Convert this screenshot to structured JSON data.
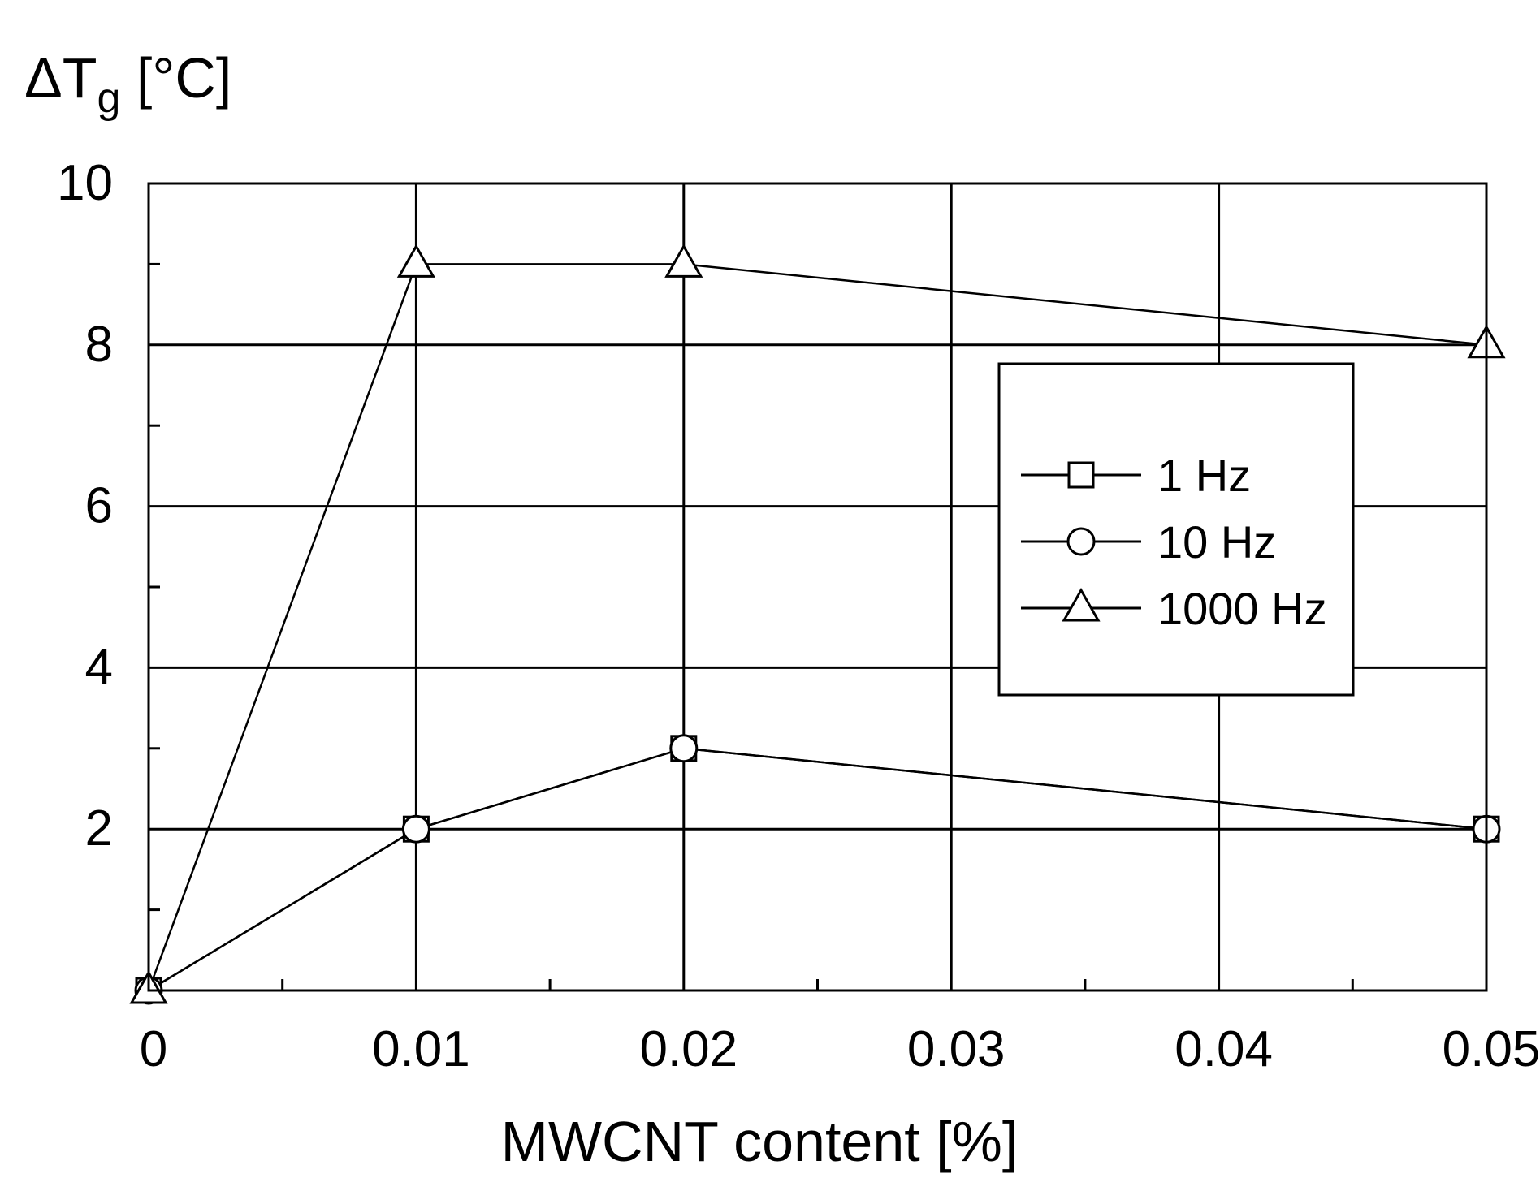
{
  "chart_data": {
    "type": "line",
    "xlabel": "MWCNT content [%]",
    "ylabel": {
      "prefix": "ΔT",
      "subscript": "g",
      "unit": " [°C]"
    },
    "xlim": [
      0,
      0.05
    ],
    "ylim": [
      0,
      10
    ],
    "x_ticks": [
      0,
      0.01,
      0.02,
      0.03,
      0.04,
      0.05
    ],
    "x_tick_labels": [
      "0",
      "0.01",
      "0.02",
      "0.03",
      "0.04",
      "0.05"
    ],
    "y_ticks": [
      2,
      4,
      6,
      8,
      10
    ],
    "y_tick_labels": [
      "2",
      "4",
      "6",
      "8",
      "10"
    ],
    "grid": true,
    "legend_position": "right",
    "series": [
      {
        "name": "1 Hz",
        "marker": "square",
        "x": [
          0,
          0.01,
          0.02,
          0.05
        ],
        "values": [
          0,
          2,
          3,
          2
        ]
      },
      {
        "name": "10 Hz",
        "marker": "circle",
        "x": [
          0,
          0.01,
          0.02,
          0.05
        ],
        "values": [
          0,
          2,
          3,
          2
        ]
      },
      {
        "name": "1000 Hz",
        "marker": "triangle",
        "x": [
          0,
          0.01,
          0.02,
          0.05
        ],
        "values": [
          0,
          9,
          9,
          8
        ]
      }
    ]
  }
}
